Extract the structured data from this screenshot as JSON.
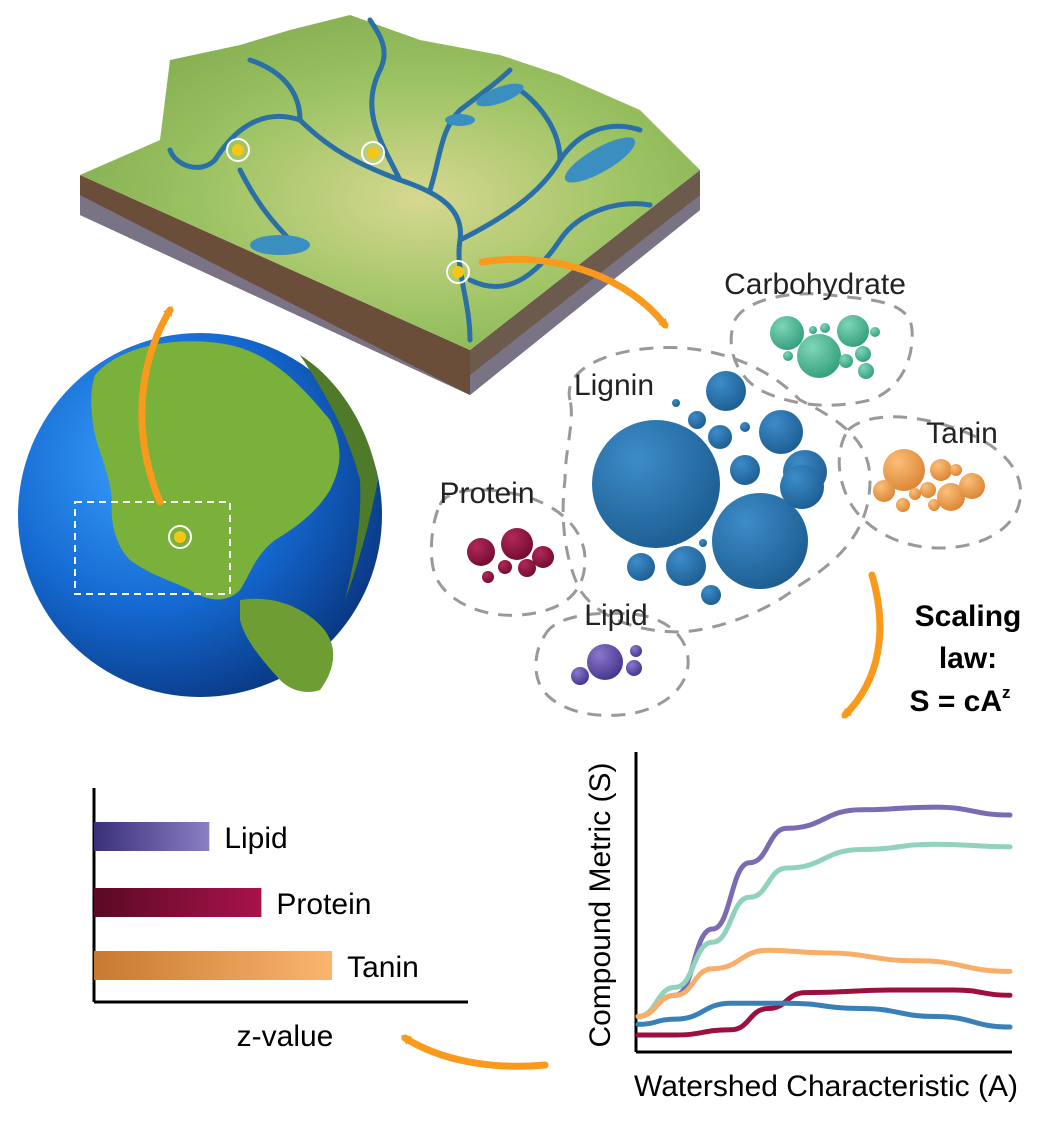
{
  "labels": {
    "carbohydrate": "Carbohydrate",
    "lignin": "Lignin",
    "tanin": "Tanin",
    "protein": "Protein",
    "lipid": "Lipid"
  },
  "scaling_law": {
    "line1": "Scaling",
    "line2": "law:",
    "equation_base": "S = cA",
    "equation_exp": "z"
  },
  "icons": {
    "globe": "earth-globe-icon",
    "landscape": "watershed-block-icon",
    "sample_site": "sample-site-marker-icon",
    "arrow": "curved-arrow-icon"
  },
  "colors": {
    "lignin": "#2a72a8",
    "carbohydrate": "#4db894",
    "tanin": "#f0a050",
    "protein": "#9a1040",
    "lipid": "#6a55a8",
    "arrow": "#f99a1c",
    "ocean": "#1f6fd0",
    "land": "#7fb33a"
  },
  "chart_data": [
    {
      "type": "line",
      "xlabel": "Watershed Characteristic (A)",
      "ylabel": "Compound Metric (S)",
      "series": [
        {
          "key": "lipid",
          "color": "#7b6bb3",
          "values": [
            [
              0.0,
              0.07
            ],
            [
              0.1,
              0.15
            ],
            [
              0.2,
              0.4
            ],
            [
              0.3,
              0.65
            ],
            [
              0.4,
              0.78
            ],
            [
              0.6,
              0.85
            ],
            [
              0.8,
              0.86
            ],
            [
              1.0,
              0.83
            ]
          ]
        },
        {
          "key": "carbohydrate",
          "color": "#8fd3bd",
          "values": [
            [
              0.0,
              0.07
            ],
            [
              0.1,
              0.18
            ],
            [
              0.2,
              0.35
            ],
            [
              0.3,
              0.52
            ],
            [
              0.4,
              0.63
            ],
            [
              0.6,
              0.7
            ],
            [
              0.8,
              0.72
            ],
            [
              1.0,
              0.71
            ]
          ]
        },
        {
          "key": "tanin",
          "color": "#f8ae68",
          "values": [
            [
              0.0,
              0.07
            ],
            [
              0.1,
              0.15
            ],
            [
              0.2,
              0.25
            ],
            [
              0.35,
              0.32
            ],
            [
              0.5,
              0.31
            ],
            [
              0.75,
              0.28
            ],
            [
              1.0,
              0.24
            ]
          ]
        },
        {
          "key": "protein",
          "color": "#9c1040",
          "values": [
            [
              0.0,
              0.0
            ],
            [
              0.1,
              0.0
            ],
            [
              0.25,
              0.02
            ],
            [
              0.35,
              0.1
            ],
            [
              0.45,
              0.16
            ],
            [
              0.7,
              0.17
            ],
            [
              0.85,
              0.17
            ],
            [
              1.0,
              0.15
            ]
          ]
        },
        {
          "key": "lignin",
          "color": "#3a80b8",
          "values": [
            [
              0.0,
              0.04
            ],
            [
              0.1,
              0.06
            ],
            [
              0.25,
              0.12
            ],
            [
              0.4,
              0.12
            ],
            [
              0.6,
              0.1
            ],
            [
              0.8,
              0.07
            ],
            [
              1.0,
              0.03
            ]
          ]
        }
      ]
    },
    {
      "type": "bar",
      "xlabel": "z-value",
      "categories": [
        "Lipid",
        "Protein",
        "Tanin"
      ],
      "values": [
        0.31,
        0.45,
        0.64
      ]
    }
  ]
}
